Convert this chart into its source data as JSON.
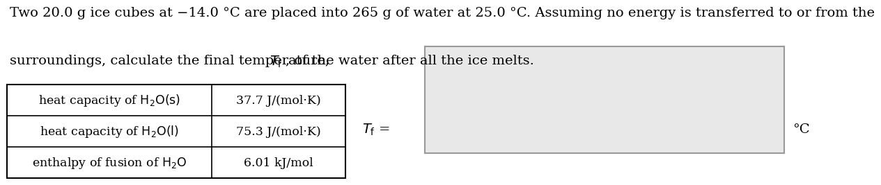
{
  "title_line1": "Two 20.0 g ice cubes at −14.0 °C are placed into 265 g of water at 25.0 °C. Assuming no energy is transferred to or from the",
  "title_line2_before_tf": "surroundings, calculate the final temperature, ",
  "title_line2_tf": "$T_\\mathrm{f}$",
  "title_line2_after_tf": ", of the water after all the ice melts.",
  "table_rows": [
    [
      "heat capacity of $\\mathrm{H_2O(s)}$",
      "37.7 J/(mol·K)"
    ],
    [
      "heat capacity of $\\mathrm{H_2O(l)}$",
      "75.3 J/(mol·K)"
    ],
    [
      "enthalpy of fusion of $\\mathrm{H_2O}$",
      "6.01 kJ/mol"
    ]
  ],
  "tf_label": "$T_\\mathrm{f}$ =",
  "unit_label": "°C",
  "bg_color": "#ffffff",
  "table_border_color": "#000000",
  "input_box_fill": "#e8e8e8",
  "input_box_edge": "#999999",
  "font_size_title": 14,
  "font_size_table": 12.5,
  "font_size_tf": 14
}
